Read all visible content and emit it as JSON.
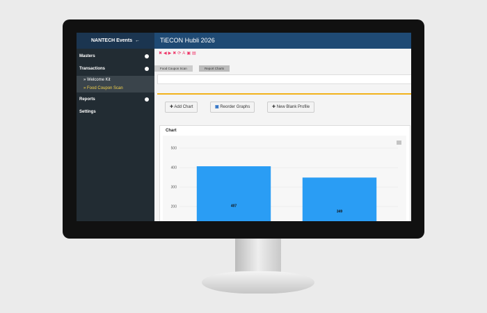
{
  "header": {
    "brand": "NANTECH Events",
    "title": "TiECON Hubli 2026"
  },
  "sidebar": {
    "items": [
      "Masters",
      "Transactions",
      "Welcome Kit",
      "Food Coupon Scan",
      "Reports",
      "Settings"
    ]
  },
  "breadcrumbs": [
    "Food Coupon Scan",
    "Report Charts"
  ],
  "buttons": [
    "Add Chart",
    "Reorder Graphs",
    "New Blank Profile"
  ],
  "chart_data": {
    "type": "bar",
    "title": "Chart",
    "categories": [
      null,
      null
    ],
    "values": [
      407,
      349
    ],
    "color": "#2a9df4",
    "ylim": [
      0,
      500
    ],
    "yticks": [
      200,
      300,
      400,
      500
    ],
    "grid": true
  }
}
